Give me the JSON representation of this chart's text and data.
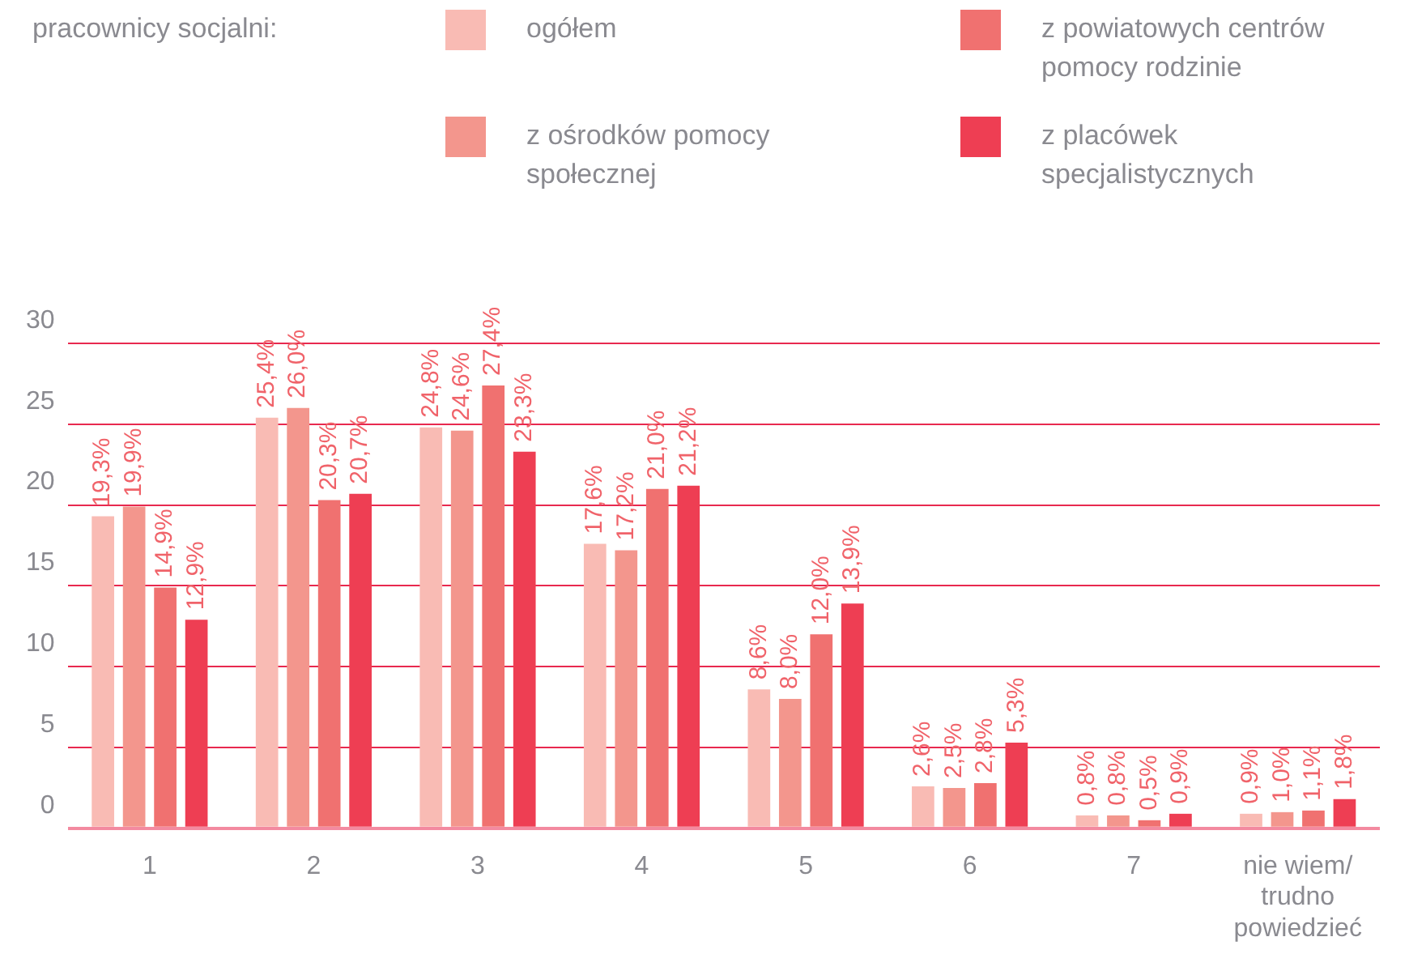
{
  "chart_data": {
    "type": "bar",
    "legend_title": "pracownicy socjalni:",
    "legend": "top",
    "categories": [
      "1",
      "2",
      "3",
      "4",
      "5",
      "6",
      "7",
      "nie wiem/ trudno powiedzieć"
    ],
    "ylim": [
      0,
      30
    ],
    "yticks": [
      0,
      5,
      10,
      15,
      20,
      25,
      30
    ],
    "grid": "y",
    "series": [
      {
        "name": "ogółem",
        "color": "#f9bbb4",
        "values": [
          19.3,
          25.4,
          24.8,
          17.6,
          8.6,
          2.6,
          0.8,
          0.9
        ],
        "value_labels": [
          "19,3%",
          "25,4%",
          "24,8%",
          "17,6%",
          "8,6%",
          "2,6%",
          "0,8%",
          "0,9%"
        ]
      },
      {
        "name": "z ośrodków pomocy społecznej",
        "color": "#f3968d",
        "values": [
          19.9,
          26.0,
          24.6,
          17.2,
          8.0,
          2.5,
          0.8,
          1.0
        ],
        "value_labels": [
          "19,9%",
          "26,0%",
          "24,6%",
          "17,2%",
          "8,0%",
          "2,5%",
          "0,8%",
          "1,0%"
        ]
      },
      {
        "name": "z powiatowych centrów pomocy rodzinie",
        "color": "#f07170",
        "values": [
          14.9,
          20.3,
          27.4,
          21.0,
          12.0,
          2.8,
          0.5,
          1.1
        ],
        "value_labels": [
          "14,9%",
          "20,3%",
          "27,4%",
          "21,0%",
          "12,0%",
          "2,8%",
          "0,5%",
          "1,1%"
        ]
      },
      {
        "name": "z placówek specjalistycznych",
        "color": "#ee3e53",
        "values": [
          12.9,
          20.7,
          23.3,
          21.2,
          13.9,
          5.3,
          0.9,
          1.8
        ],
        "value_labels": [
          "12,9%",
          "20,7%",
          "23,3%",
          "21,2%",
          "13,9%",
          "5,3%",
          "0,9%",
          "1,8%"
        ]
      }
    ]
  }
}
